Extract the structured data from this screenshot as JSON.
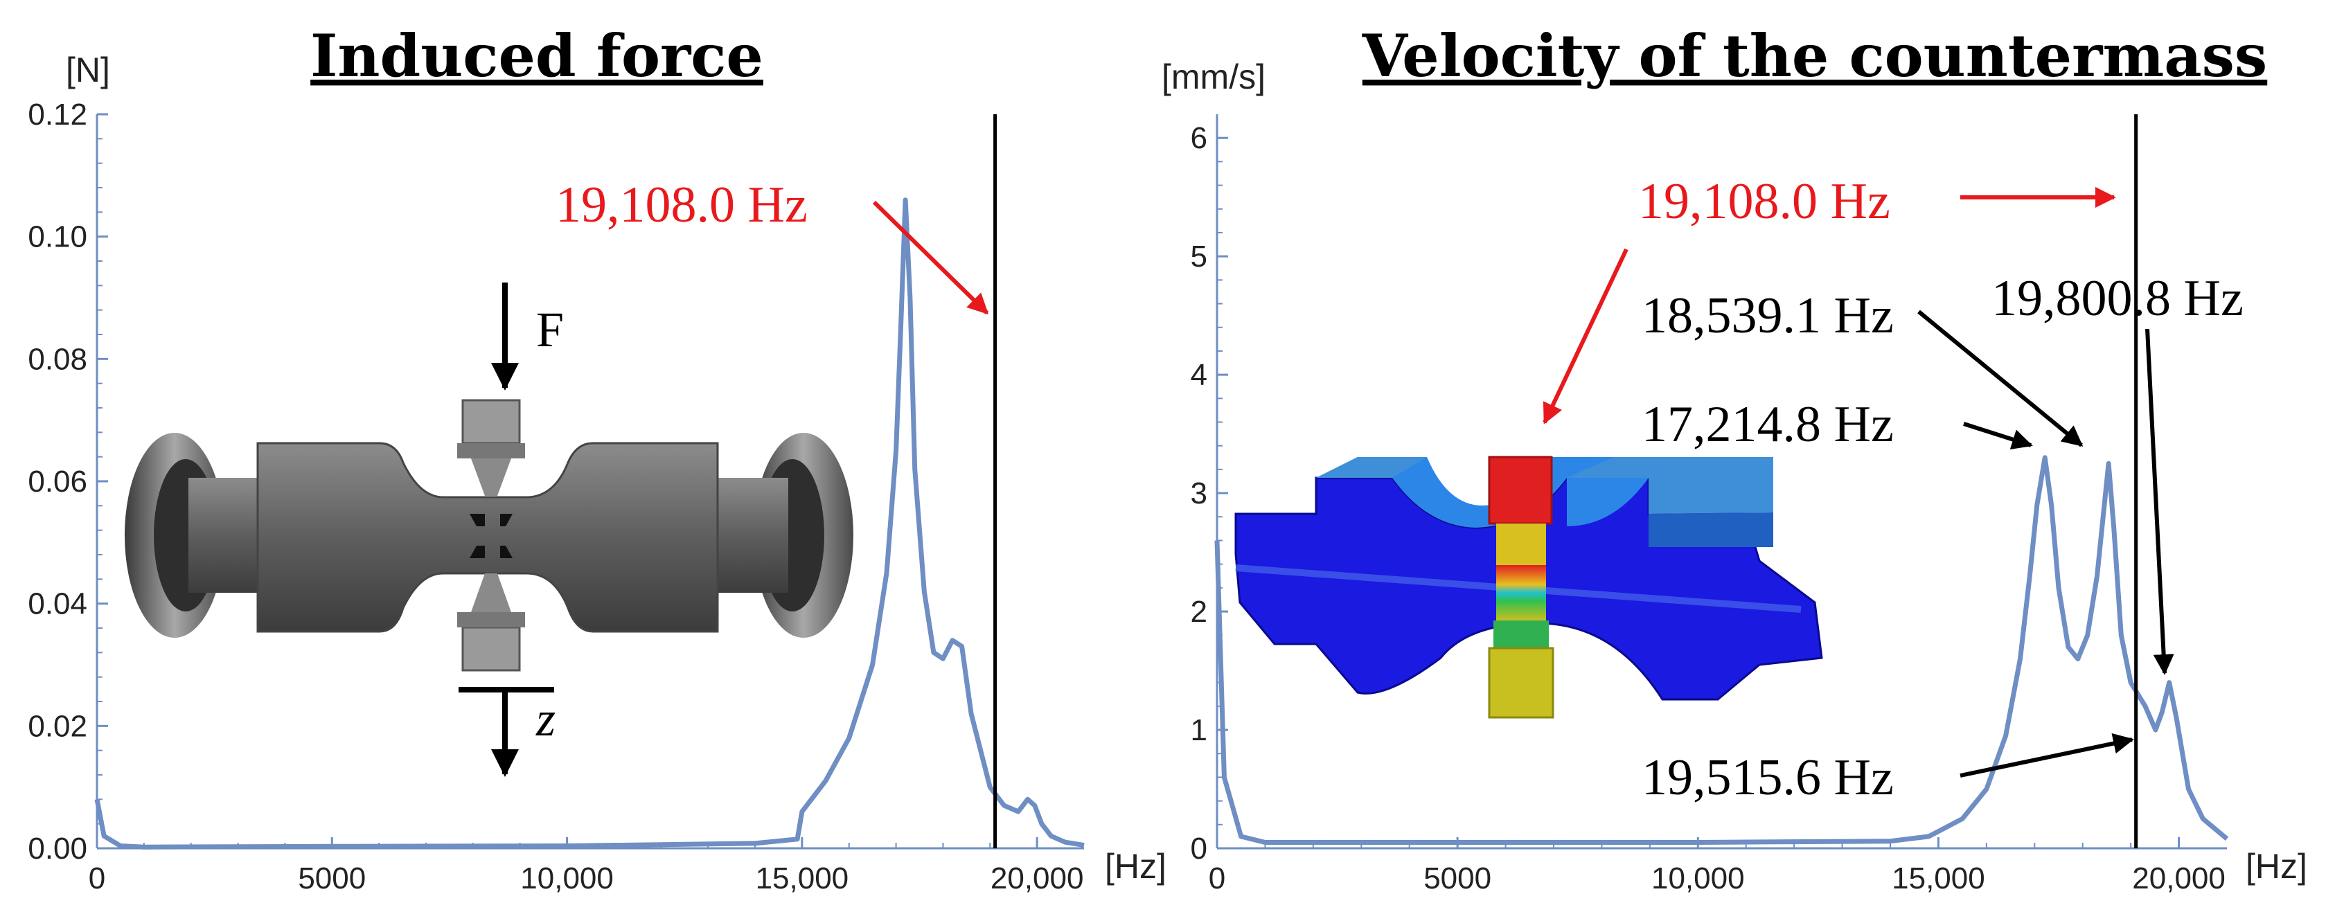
{
  "chart_data": [
    {
      "type": "line",
      "title": "Induced force",
      "ylabel": "[N]",
      "xlabel": "[Hz]",
      "xlim": [
        0,
        21000
      ],
      "ylim": [
        0,
        0.12
      ],
      "xticks": [
        0,
        5000,
        10000,
        15000,
        20000
      ],
      "xtick_labels": [
        "0",
        "5000",
        "10,000",
        "15,000",
        "20,000"
      ],
      "yticks": [
        0,
        0.02,
        0.04,
        0.06,
        0.08,
        0.1,
        0.12
      ],
      "ytick_labels": [
        "0.00",
        "0.02",
        "0.04",
        "0.06",
        "0.08",
        "0.10",
        "0.12"
      ],
      "series": [
        {
          "name": "Induced force",
          "color": "#6e8ec4",
          "x": [
            0,
            150,
            500,
            1000,
            5000,
            10000,
            14000,
            14900,
            15000,
            15500,
            16000,
            16500,
            16800,
            17000,
            17100,
            17200,
            17300,
            17400,
            17600,
            17800,
            18000,
            18200,
            18400,
            18600,
            18800,
            19000,
            19300,
            19600,
            19800,
            19950,
            20100,
            20300,
            20600,
            21000
          ],
          "values": [
            0.008,
            0.002,
            0.0004,
            0.0002,
            0.0003,
            0.0004,
            0.0008,
            0.0015,
            0.006,
            0.011,
            0.018,
            0.03,
            0.045,
            0.065,
            0.085,
            0.106,
            0.09,
            0.062,
            0.042,
            0.032,
            0.031,
            0.034,
            0.033,
            0.022,
            0.016,
            0.01,
            0.007,
            0.006,
            0.008,
            0.007,
            0.004,
            0.002,
            0.001,
            0.0005
          ]
        }
      ],
      "vline": 19108.0,
      "annotations": [
        {
          "text": "19,108.0 Hz",
          "color": "#e8191c",
          "target": [
            19108.0,
            0.088
          ]
        }
      ],
      "inset_labels": {
        "force": "F",
        "axis": "z"
      }
    },
    {
      "type": "line",
      "title": "Velocity of the countermass",
      "ylabel": "[mm/s]",
      "xlabel": "[Hz]",
      "xlim": [
        0,
        21000
      ],
      "ylim": [
        0,
        6.2
      ],
      "xticks": [
        0,
        5000,
        10000,
        15000,
        20000
      ],
      "xtick_labels": [
        "0",
        "5000",
        "10,000",
        "15,000",
        "20,000"
      ],
      "yticks": [
        0,
        1,
        2,
        3,
        4,
        5,
        6
      ],
      "ytick_labels": [
        "0",
        "1",
        "2",
        "3",
        "4",
        "5",
        "6"
      ],
      "series": [
        {
          "name": "Velocity of the countermass",
          "color": "#6e8ec4",
          "x": [
            0,
            150,
            500,
            1000,
            5000,
            10000,
            14000,
            14800,
            15500,
            16000,
            16400,
            16700,
            16900,
            17050,
            17214.8,
            17350,
            17500,
            17700,
            17900,
            18100,
            18300,
            18450,
            18539.1,
            18650,
            18800,
            19000,
            19300,
            19515.6,
            19650,
            19800.8,
            19950,
            20200,
            20500,
            21000
          ],
          "values": [
            2.6,
            0.6,
            0.1,
            0.05,
            0.05,
            0.05,
            0.06,
            0.1,
            0.25,
            0.5,
            0.95,
            1.6,
            2.3,
            2.9,
            3.3,
            2.9,
            2.2,
            1.7,
            1.6,
            1.8,
            2.3,
            2.9,
            3.25,
            2.7,
            1.8,
            1.4,
            1.2,
            1.0,
            1.15,
            1.4,
            1.1,
            0.5,
            0.25,
            0.08
          ]
        }
      ],
      "vline": 19108.0,
      "annotations": [
        {
          "text": "19,108.0 Hz",
          "color": "#e8191c",
          "target": [
            19108.0,
            5.4
          ]
        },
        {
          "text": "18,539.1 Hz",
          "color": "#000000",
          "target": [
            18539.1,
            3.35
          ]
        },
        {
          "text": "17,214.8 Hz",
          "color": "#000000",
          "target": [
            17214.8,
            3.4
          ]
        },
        {
          "text": "19,800.8 Hz",
          "color": "#000000",
          "target": [
            19800.8,
            1.45
          ]
        },
        {
          "text": "19,515.6 Hz",
          "color": "#000000",
          "target": [
            19515.6,
            1.0
          ]
        }
      ]
    }
  ]
}
